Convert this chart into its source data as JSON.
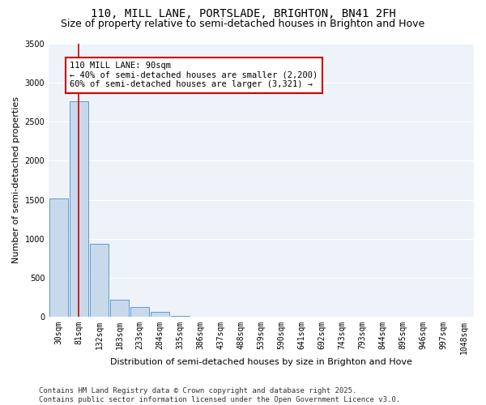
{
  "title_line1": "110, MILL LANE, PORTSLADE, BRIGHTON, BN41 2FH",
  "title_line2": "Size of property relative to semi-detached houses in Brighton and Hove",
  "xlabel": "Distribution of semi-detached houses by size in Brighton and Hove",
  "ylabel": "Number of semi-detached properties",
  "categories": [
    "30sqm",
    "81sqm",
    "132sqm",
    "183sqm",
    "233sqm",
    "284sqm",
    "335sqm",
    "386sqm",
    "437sqm",
    "488sqm",
    "539sqm",
    "590sqm",
    "641sqm",
    "692sqm",
    "743sqm",
    "793sqm",
    "844sqm",
    "895sqm",
    "946sqm",
    "997sqm",
    "1048sqm"
  ],
  "values": [
    1520,
    2760,
    930,
    220,
    120,
    60,
    10,
    0,
    0,
    0,
    0,
    0,
    0,
    0,
    0,
    0,
    0,
    0,
    0,
    0,
    0
  ],
  "bar_color": "#c9d9ec",
  "bar_edge_color": "#5b9bd5",
  "vline_x": 0.97,
  "vline_color": "#cc0000",
  "annotation_text": "110 MILL LANE: 90sqm\n← 40% of semi-detached houses are smaller (2,200)\n60% of semi-detached houses are larger (3,321) →",
  "annotation_box_color": "#ffffff",
  "annotation_box_edge_color": "#cc0000",
  "ylim": [
    0,
    3500
  ],
  "yticks": [
    0,
    500,
    1000,
    1500,
    2000,
    2500,
    3000,
    3500
  ],
  "footnote": "Contains HM Land Registry data © Crown copyright and database right 2025.\nContains public sector information licensed under the Open Government Licence v3.0.",
  "bg_color": "#ffffff",
  "plot_bg_color": "#eef3f9",
  "grid_color": "#ffffff",
  "title_fontsize": 10,
  "subtitle_fontsize": 9,
  "tick_fontsize": 7,
  "ylabel_fontsize": 8,
  "xlabel_fontsize": 8,
  "annotation_fontsize": 7.5,
  "footnote_fontsize": 6.5
}
